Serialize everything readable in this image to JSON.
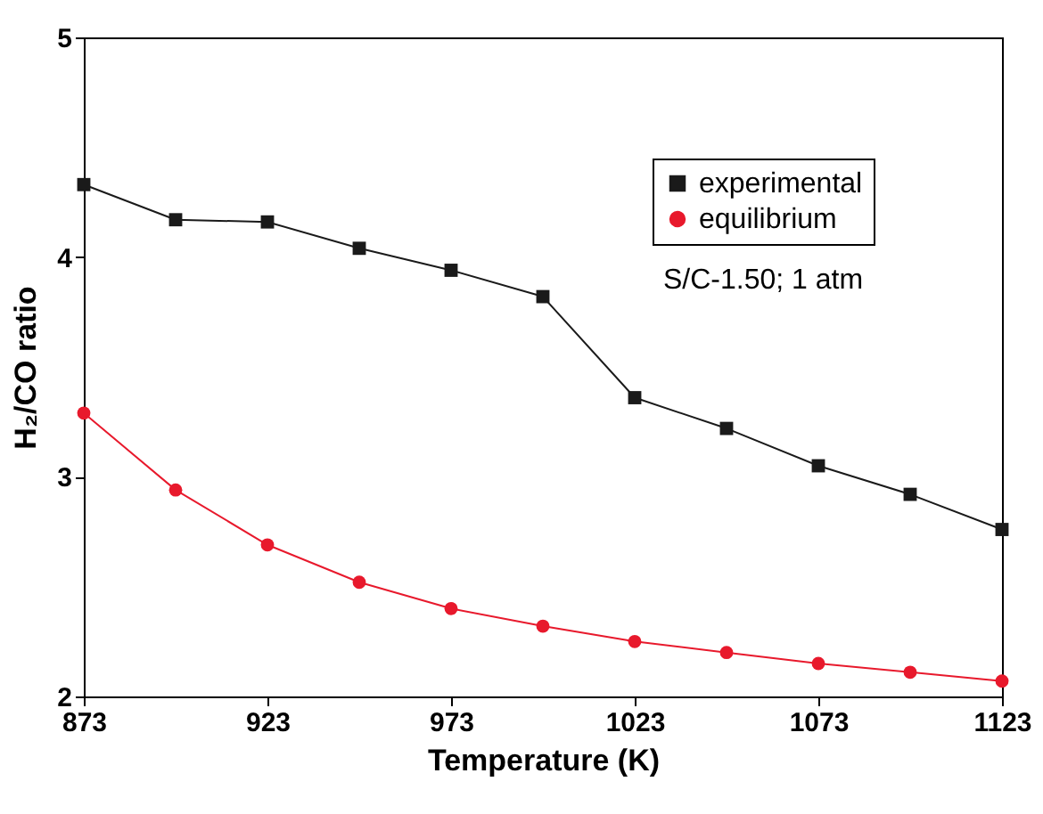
{
  "chart_data": {
    "type": "line",
    "xlabel": "Temperature (K)",
    "ylabel": "H₂/CO ratio",
    "x": [
      873,
      898,
      923,
      948,
      973,
      998,
      1023,
      1048,
      1073,
      1098,
      1123
    ],
    "xlim": [
      873,
      1123
    ],
    "xticks": [
      873,
      923,
      973,
      1023,
      1073,
      1123
    ],
    "ylim": [
      2,
      5
    ],
    "yticks": [
      2,
      3,
      4,
      5
    ],
    "series": [
      {
        "name": "experimental",
        "color": "#1a1a1a",
        "marker": "square",
        "values": [
          4.33,
          4.17,
          4.16,
          4.04,
          3.94,
          3.82,
          3.36,
          3.22,
          3.05,
          2.92,
          2.76
        ]
      },
      {
        "name": "equilibrium",
        "color": "#e8192c",
        "marker": "circle",
        "values": [
          3.29,
          2.94,
          2.69,
          2.52,
          2.4,
          2.32,
          2.25,
          2.2,
          2.15,
          2.11,
          2.07
        ]
      }
    ],
    "legend": "top right",
    "grid": false,
    "annotations": [
      "S/C-1.50; 1 atm"
    ]
  }
}
